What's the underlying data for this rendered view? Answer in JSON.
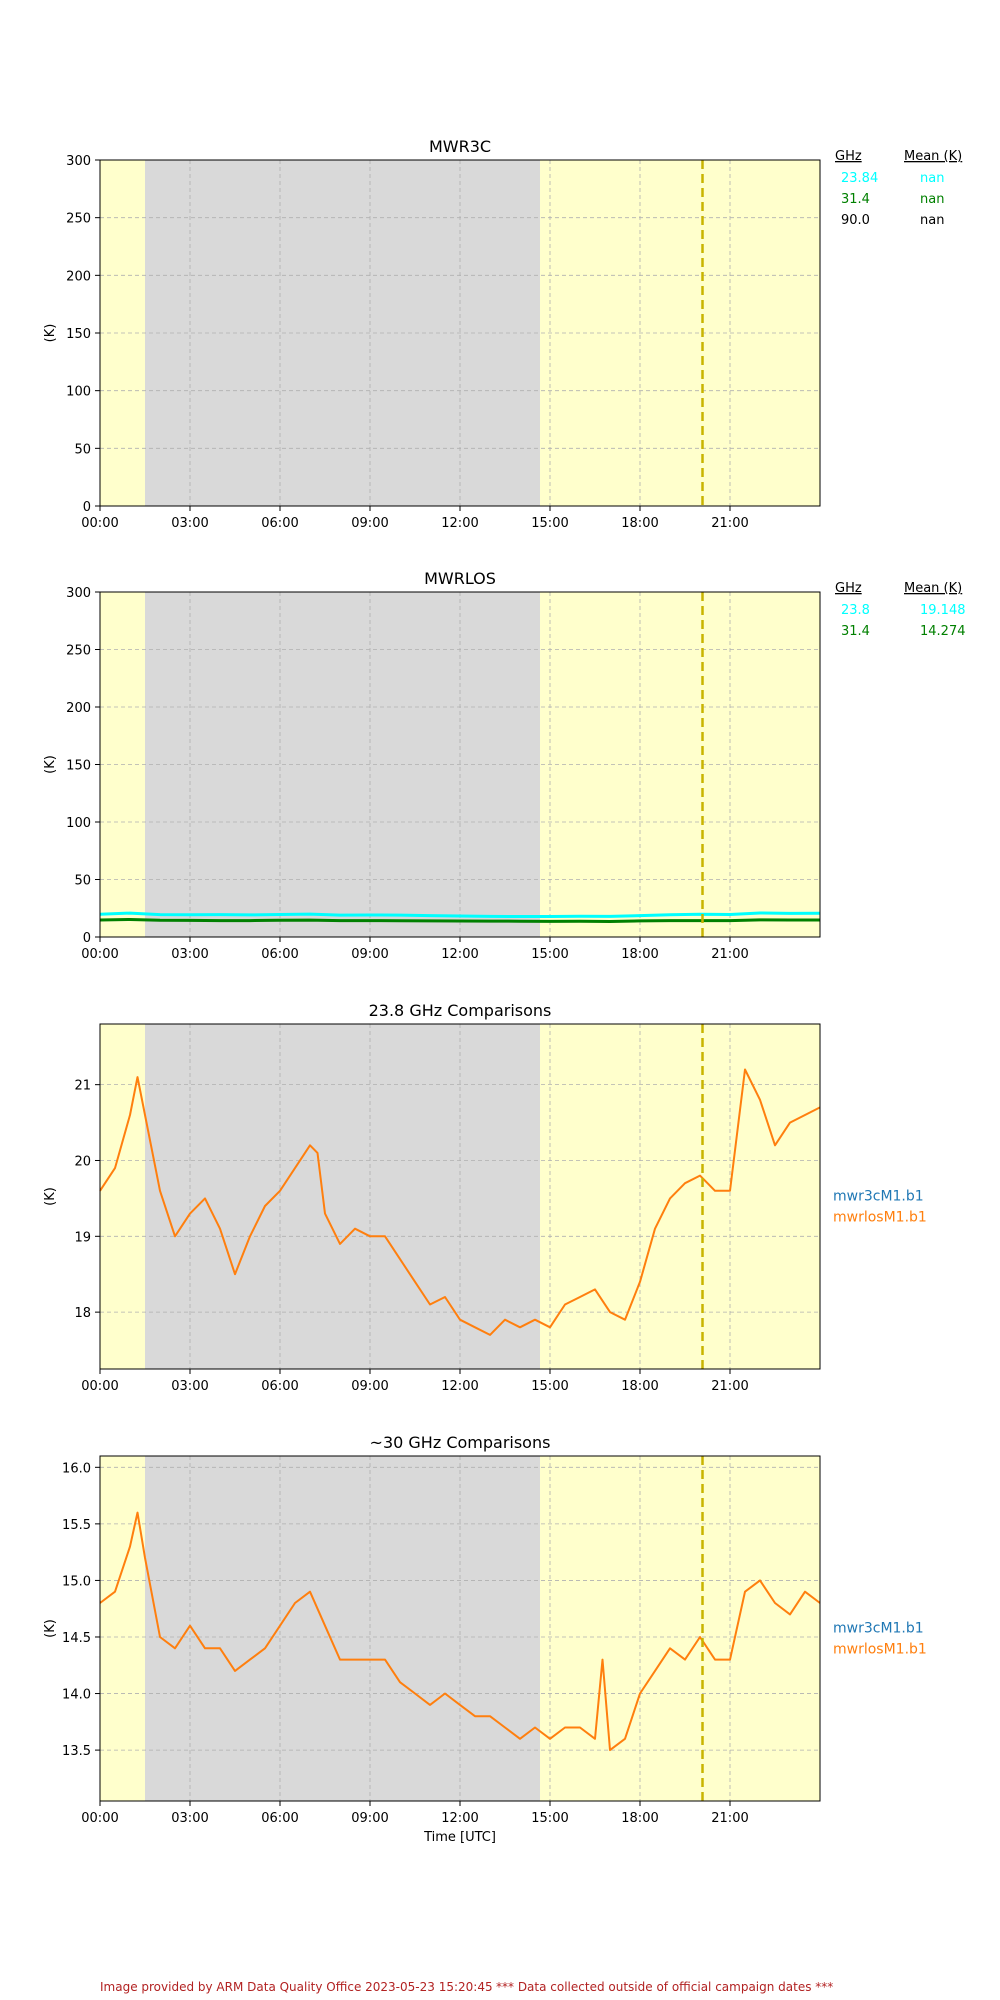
{
  "colors": {
    "day_shade": "#ffffcc",
    "night_shade": "#d9d9d9",
    "cyan": "#00ffff",
    "green": "#008000",
    "black": "#000000",
    "blue": "#1f77b4",
    "orange": "#ff7f0e",
    "dashed_marker": "#c8b400",
    "footer": "#b22222"
  },
  "shading": {
    "night_start": "01:30",
    "night_end": "14:40",
    "marker_time": "20:05"
  },
  "x_tick_labels": [
    "00:00",
    "03:00",
    "06:00",
    "09:00",
    "12:00",
    "15:00",
    "18:00",
    "21:00"
  ],
  "xlabel": "Time [UTC]",
  "chart_data": [
    {
      "id": "mwr3c",
      "type": "line",
      "title": "MWR3C",
      "ylabel": "(K)",
      "ylim": [
        0,
        300
      ],
      "yticks": [
        0,
        50,
        100,
        150,
        200,
        250,
        300
      ],
      "ytick_labels": [
        "0",
        "50",
        "100",
        "150",
        "200",
        "250",
        "300"
      ],
      "grid": true,
      "series": [],
      "legend_table": {
        "header": [
          "GHz",
          "Mean (K)"
        ],
        "rows": [
          {
            "ghz": "23.84",
            "mean": "nan",
            "color": "#00ffff"
          },
          {
            "ghz": "31.4",
            "mean": "nan",
            "color": "#008000"
          },
          {
            "ghz": "90.0",
            "mean": "nan",
            "color": "#000000"
          }
        ]
      }
    },
    {
      "id": "mwrlos",
      "type": "line",
      "title": "MWRLOS",
      "ylabel": "(K)",
      "ylim": [
        0,
        300
      ],
      "yticks": [
        0,
        50,
        100,
        150,
        200,
        250,
        300
      ],
      "ytick_labels": [
        "0",
        "50",
        "100",
        "150",
        "200",
        "250",
        "300"
      ],
      "grid": true,
      "series": [
        {
          "color": "#00ffff",
          "x": [
            "00:00",
            "01:00",
            "02:00",
            "03:00",
            "04:00",
            "05:00",
            "06:00",
            "07:00",
            "08:00",
            "09:00",
            "10:00",
            "11:00",
            "12:00",
            "13:00",
            "14:00",
            "15:00",
            "16:00",
            "17:00",
            "18:00",
            "19:00",
            "20:00",
            "21:00",
            "22:00",
            "23:00",
            "24:00"
          ],
          "values": [
            19.8,
            20.8,
            19.5,
            19.4,
            19.5,
            19.2,
            19.6,
            19.9,
            19.0,
            19.1,
            19.0,
            18.6,
            18.3,
            17.9,
            17.8,
            17.8,
            18.1,
            17.9,
            18.6,
            19.4,
            19.8,
            19.6,
            20.9,
            20.5,
            20.6
          ]
        },
        {
          "color": "#008000",
          "x": [
            "00:00",
            "01:00",
            "02:00",
            "03:00",
            "04:00",
            "05:00",
            "06:00",
            "07:00",
            "08:00",
            "09:00",
            "10:00",
            "11:00",
            "12:00",
            "13:00",
            "14:00",
            "15:00",
            "16:00",
            "17:00",
            "18:00",
            "19:00",
            "20:00",
            "21:00",
            "22:00",
            "23:00",
            "24:00"
          ],
          "values": [
            14.8,
            15.2,
            14.5,
            14.4,
            14.3,
            14.3,
            14.5,
            14.7,
            14.3,
            14.3,
            14.2,
            14.0,
            13.9,
            13.8,
            13.7,
            13.6,
            13.7,
            13.5,
            14.0,
            14.3,
            14.3,
            14.3,
            14.9,
            14.8,
            14.8
          ]
        }
      ],
      "legend_table": {
        "header": [
          "GHz",
          "Mean (K)"
        ],
        "rows": [
          {
            "ghz": "23.8",
            "mean": "19.148",
            "color": "#00ffff"
          },
          {
            "ghz": "31.4",
            "mean": "14.274",
            "color": "#008000"
          }
        ]
      }
    },
    {
      "id": "comp238",
      "type": "line",
      "title": "23.8 GHz Comparisons",
      "ylabel": "(K)",
      "ylim": [
        17.25,
        21.8
      ],
      "yticks": [
        18,
        19,
        20,
        21
      ],
      "ytick_labels": [
        "18",
        "19",
        "20",
        "21"
      ],
      "grid": true,
      "series": [
        {
          "name": "mwrlosM1.b1",
          "color": "#ff7f0e",
          "x": [
            "00:00",
            "00:30",
            "01:00",
            "01:15",
            "01:30",
            "02:00",
            "02:30",
            "03:00",
            "03:30",
            "04:00",
            "04:30",
            "05:00",
            "05:30",
            "06:00",
            "06:30",
            "07:00",
            "07:15",
            "07:30",
            "08:00",
            "08:30",
            "09:00",
            "09:30",
            "10:00",
            "10:30",
            "11:00",
            "11:30",
            "12:00",
            "12:30",
            "13:00",
            "13:30",
            "14:00",
            "14:30",
            "15:00",
            "15:30",
            "16:00",
            "16:30",
            "17:00",
            "17:30",
            "18:00",
            "18:30",
            "19:00",
            "19:30",
            "20:00",
            "20:30",
            "21:00",
            "21:30",
            "22:00",
            "22:30",
            "23:00",
            "23:30",
            "24:00"
          ],
          "values": [
            19.6,
            19.9,
            20.6,
            21.1,
            20.6,
            19.6,
            19.0,
            19.3,
            19.5,
            19.1,
            18.5,
            19.0,
            19.4,
            19.6,
            19.9,
            20.2,
            20.1,
            19.3,
            18.9,
            19.1,
            19.0,
            19.0,
            18.7,
            18.4,
            18.1,
            18.2,
            17.9,
            17.8,
            17.7,
            17.9,
            17.8,
            17.9,
            17.8,
            18.1,
            18.2,
            18.3,
            18.0,
            17.9,
            18.4,
            19.1,
            19.5,
            19.7,
            19.8,
            19.6,
            19.6,
            21.2,
            20.8,
            20.2,
            20.5,
            20.6,
            20.7
          ]
        }
      ],
      "legend": [
        {
          "label": "mwr3cM1.b1",
          "color": "#1f77b4"
        },
        {
          "label": "mwrlosM1.b1",
          "color": "#ff7f0e"
        }
      ]
    },
    {
      "id": "comp30",
      "type": "line",
      "title": "~30 GHz Comparisons",
      "ylabel": "(K)",
      "ylim": [
        13.05,
        16.1
      ],
      "yticks": [
        13.5,
        14.0,
        14.5,
        15.0,
        15.5,
        16.0
      ],
      "ytick_labels": [
        "13.5",
        "14.0",
        "14.5",
        "15.0",
        "15.5",
        "16.0"
      ],
      "grid": true,
      "series": [
        {
          "name": "mwrlosM1.b1",
          "color": "#ff7f0e",
          "x": [
            "00:00",
            "00:30",
            "01:00",
            "01:15",
            "01:30",
            "02:00",
            "02:30",
            "03:00",
            "03:30",
            "04:00",
            "04:30",
            "05:00",
            "05:30",
            "06:00",
            "06:30",
            "07:00",
            "07:30",
            "08:00",
            "08:30",
            "09:00",
            "09:30",
            "10:00",
            "10:30",
            "11:00",
            "11:30",
            "12:00",
            "12:30",
            "13:00",
            "13:30",
            "14:00",
            "14:30",
            "15:00",
            "15:30",
            "16:00",
            "16:30",
            "16:45",
            "17:00",
            "17:30",
            "18:00",
            "18:30",
            "19:00",
            "19:30",
            "20:00",
            "20:30",
            "21:00",
            "21:30",
            "22:00",
            "22:30",
            "23:00",
            "23:30",
            "24:00"
          ],
          "values": [
            14.8,
            14.9,
            15.3,
            15.6,
            15.2,
            14.5,
            14.4,
            14.6,
            14.4,
            14.4,
            14.2,
            14.3,
            14.4,
            14.6,
            14.8,
            14.9,
            14.6,
            14.3,
            14.3,
            14.3,
            14.3,
            14.1,
            14.0,
            13.9,
            14.0,
            13.9,
            13.8,
            13.8,
            13.7,
            13.6,
            13.7,
            13.6,
            13.7,
            13.7,
            13.6,
            14.3,
            13.5,
            13.6,
            14.0,
            14.2,
            14.4,
            14.3,
            14.5,
            14.3,
            14.3,
            14.9,
            15.0,
            14.8,
            14.7,
            14.9,
            14.8
          ]
        }
      ],
      "legend": [
        {
          "label": "mwr3cM1.b1",
          "color": "#1f77b4"
        },
        {
          "label": "mwrlosM1.b1",
          "color": "#ff7f0e"
        }
      ]
    }
  ],
  "footer": {
    "provided": "Image provided by ARM Data Quality Office 2023-05-23 15:20:45",
    "note": "*** Data collected outside of official campaign dates ***"
  }
}
